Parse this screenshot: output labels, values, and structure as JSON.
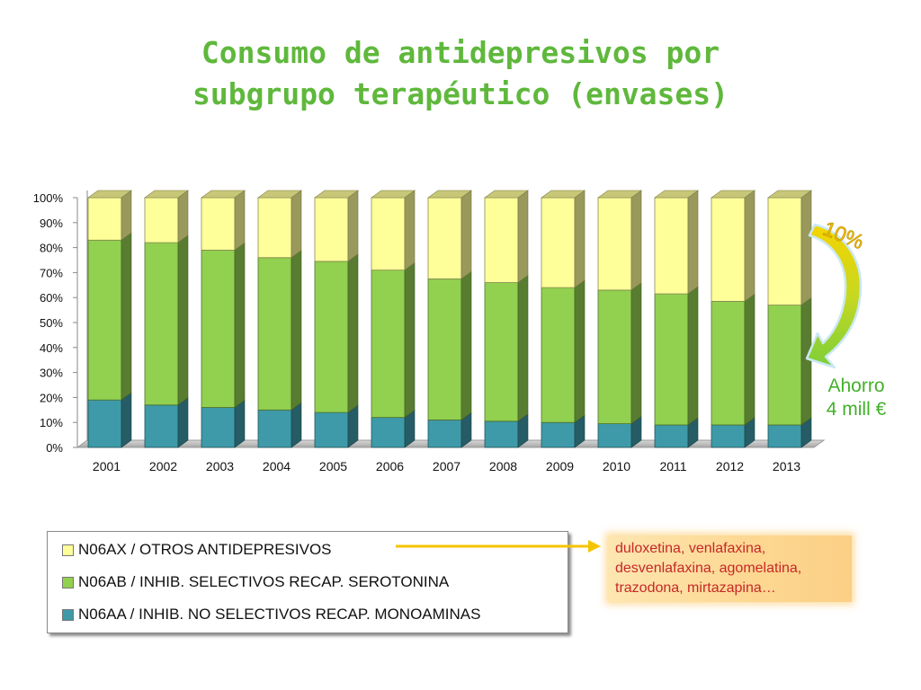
{
  "page": {
    "title_line1": "Consumo de antidepresivos por",
    "title_line2": "subgrupo terapéutico (envases)"
  },
  "colors": {
    "N06AA": "#3e9aa8",
    "N06AB": "#92d050",
    "N06AX": "#ffff99",
    "title": "#5fb83c",
    "callout": "#43b02a",
    "note_text": "#c62828"
  },
  "chart_data": {
    "type": "bar",
    "stacked": true,
    "percent": true,
    "style": "3d",
    "categories": [
      "2001",
      "2002",
      "2003",
      "2004",
      "2005",
      "2006",
      "2007",
      "2008",
      "2009",
      "2010",
      "2011",
      "2012",
      "2013"
    ],
    "series": [
      {
        "name": "N06AA / INHIB. NO SELECTIVOS RECAP. MONOAMINAS",
        "color": "#3e9aa8",
        "values": [
          19,
          17,
          16,
          15,
          14,
          12,
          11,
          10.5,
          10,
          9.5,
          9,
          9,
          9
        ]
      },
      {
        "name": "N06AB / INHIB. SELECTIVOS  RECAP. SEROTONINA",
        "color": "#92d050",
        "values": [
          64,
          65,
          63,
          61,
          60.5,
          59,
          56.5,
          55.5,
          54,
          53.5,
          52.5,
          49.5,
          48
        ]
      },
      {
        "name": "N06AX / OTROS ANTIDEPRESIVOS",
        "color": "#ffff99",
        "values": [
          17,
          18,
          21,
          24,
          25.5,
          29,
          32.5,
          34,
          36,
          37,
          38.5,
          41.5,
          43
        ]
      }
    ],
    "yticks": [
      "0%",
      "10%",
      "20%",
      "30%",
      "40%",
      "50%",
      "60%",
      "70%",
      "80%",
      "90%",
      "100%"
    ],
    "ylim": [
      0,
      100
    ],
    "grid": false,
    "legend_position": "bottom-left",
    "annotations": {
      "percent_label": "10%",
      "saving_line1": "Ahorro",
      "saving_line2": "4 mill €"
    }
  },
  "legend": {
    "items": [
      {
        "label": "N06AX / OTROS ANTIDEPRESIVOS",
        "color": "#ffff99"
      },
      {
        "label": "N06AB / INHIB. SELECTIVOS  RECAP. SEROTONINA",
        "color": "#92d050"
      },
      {
        "label": "N06AA / INHIB. NO SELECTIVOS RECAP. MONOAMINAS",
        "color": "#3e9aa8"
      }
    ]
  },
  "note": {
    "line1": "duloxetina, venlafaxina,",
    "line2": "desvenlafaxina,  agomelatina,",
    "line3": "trazodona, mirtazapina…"
  }
}
